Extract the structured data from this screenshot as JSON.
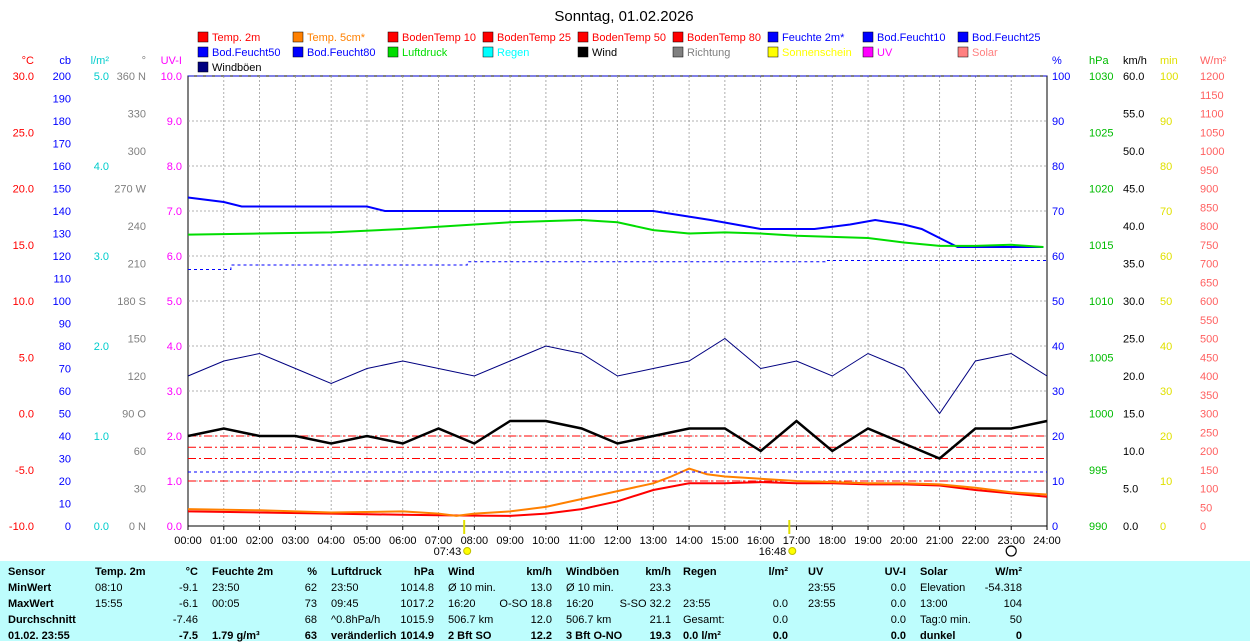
{
  "chart_data": {
    "type": "line",
    "title": "Sonntag, 01.02.2026",
    "x_ticks": [
      "00:00",
      "01:00",
      "02:00",
      "03:00",
      "04:00",
      "05:00",
      "06:00",
      "07:00",
      "08:00",
      "09:00",
      "10:00",
      "11:00",
      "12:00",
      "13:00",
      "14:00",
      "15:00",
      "16:00",
      "17:00",
      "18:00",
      "19:00",
      "20:00",
      "21:00",
      "22:00",
      "23:00",
      "24:00"
    ],
    "sunrise": "07:43",
    "sunset": "16:48",
    "legend": [
      {
        "label": "Temp. 2m",
        "color": "#ff0000"
      },
      {
        "label": "Temp. 5cm*",
        "color": "#ff8000"
      },
      {
        "label": "BodenTemp 10",
        "color": "#ff0000"
      },
      {
        "label": "BodenTemp 25",
        "color": "#ff0000"
      },
      {
        "label": "BodenTemp 50",
        "color": "#ff0000"
      },
      {
        "label": "BodenTemp 80",
        "color": "#ff0000"
      },
      {
        "label": "Feuchte 2m*",
        "color": "#0000ff"
      },
      {
        "label": "Bod.Feucht10",
        "color": "#0000ff"
      },
      {
        "label": "Bod.Feucht25",
        "color": "#0000ff"
      },
      {
        "label": "Bod.Feucht50",
        "color": "#0000ff"
      },
      {
        "label": "Bod.Feucht80",
        "color": "#0000ff"
      },
      {
        "label": "Luftdruck",
        "color": "#00dd00"
      },
      {
        "label": "Regen",
        "color": "#00ffff"
      },
      {
        "label": "Wind",
        "color": "#000000"
      },
      {
        "label": "Richtung",
        "color": "#808080"
      },
      {
        "label": "Sonnenschein",
        "color": "#ffff00"
      },
      {
        "label": "UV",
        "color": "#ff00ff"
      },
      {
        "label": "Solar",
        "color": "#ff8080"
      },
      {
        "label": "Windböen",
        "color": "#000080"
      }
    ],
    "axes_left": [
      {
        "unit": "°C",
        "color": "#ff0000",
        "ticks": [
          "30.0",
          "25.0",
          "20.0",
          "15.0",
          "10.0",
          "5.0",
          "0.0",
          "-5.0",
          "-10.0"
        ]
      },
      {
        "unit": "cb",
        "color": "#0000ff",
        "ticks": [
          "200",
          "190",
          "180",
          "170",
          "160",
          "150",
          "140",
          "130",
          "120",
          "110",
          "100",
          "90",
          "80",
          "70",
          "60",
          "50",
          "40",
          "30",
          "20",
          "10",
          "0"
        ]
      },
      {
        "unit": "l/m²",
        "color": "#00cccc",
        "ticks": [
          "5.0",
          "4.0",
          "3.0",
          "2.0",
          "1.0",
          "0.0"
        ]
      },
      {
        "unit": "°",
        "color": "#808080",
        "ticks": [
          "360 N",
          "330",
          "300",
          "270 W",
          "240",
          "210",
          "180 S",
          "150",
          "120",
          "90 O",
          "60",
          "30",
          "0 N"
        ]
      },
      {
        "unit": "UV-I",
        "color": "#ff00ff",
        "ticks": [
          "10.0",
          "9.0",
          "8.0",
          "7.0",
          "6.0",
          "5.0",
          "4.0",
          "3.0",
          "2.0",
          "1.0",
          "0.0"
        ]
      }
    ],
    "axes_right": [
      {
        "unit": "%",
        "color": "#0000ff",
        "ticks": [
          "100",
          "90",
          "80",
          "70",
          "60",
          "50",
          "40",
          "30",
          "20",
          "10",
          "0"
        ]
      },
      {
        "unit": "hPa",
        "color": "#00bb00",
        "ticks": [
          "1030",
          "1025",
          "1020",
          "1015",
          "1010",
          "1005",
          "1000",
          "995",
          "990"
        ]
      },
      {
        "unit": "km/h",
        "color": "#000000",
        "ticks": [
          "60.0",
          "55.0",
          "50.0",
          "45.0",
          "40.0",
          "35.0",
          "30.0",
          "25.0",
          "20.0",
          "15.0",
          "10.0",
          "5.0",
          "0.0"
        ]
      },
      {
        "unit": "min",
        "color": "#e0e000",
        "ticks": [
          "100",
          "90",
          "80",
          "70",
          "60",
          "50",
          "40",
          "30",
          "20",
          "10",
          "0"
        ]
      },
      {
        "unit": "W/m²",
        "color": "#ff6060",
        "ticks": [
          "1200",
          "1150",
          "1100",
          "1050",
          "1000",
          "950",
          "900",
          "850",
          "800",
          "750",
          "700",
          "650",
          "600",
          "550",
          "500",
          "450",
          "400",
          "350",
          "300",
          "250",
          "200",
          "150",
          "100",
          "50",
          "0"
        ]
      }
    ],
    "series": [
      {
        "name": "Temp. 2m",
        "axis": "°C",
        "color": "#ff0000",
        "x": [
          0,
          2,
          4,
          6,
          7,
          8,
          9,
          10,
          11,
          12,
          13,
          14,
          15,
          16,
          17,
          18,
          19,
          20,
          21,
          22,
          23,
          24
        ],
        "y": [
          -8.7,
          -8.8,
          -8.9,
          -9.0,
          -9.05,
          -9.08,
          -9.1,
          -8.9,
          -8.5,
          -7.8,
          -6.8,
          -6.2,
          -6.2,
          -6.1,
          -6.2,
          -6.2,
          -6.3,
          -6.3,
          -6.4,
          -6.8,
          -7.1,
          -7.4
        ]
      },
      {
        "name": "Temp. 5cm*",
        "axis": "°C",
        "color": "#ff8000",
        "x": [
          0,
          2,
          4,
          6,
          7,
          7.5,
          8,
          9,
          10,
          11,
          12,
          13,
          13.5,
          14,
          14.5,
          15,
          16,
          17,
          18,
          19,
          20,
          21,
          22,
          23,
          24
        ],
        "y": [
          -8.5,
          -8.6,
          -8.8,
          -8.7,
          -8.9,
          -9.1,
          -8.9,
          -8.7,
          -8.3,
          -7.6,
          -6.9,
          -6.2,
          -5.6,
          -4.9,
          -5.4,
          -5.6,
          -5.8,
          -6.0,
          -6.1,
          -6.2,
          -6.2,
          -6.3,
          -6.6,
          -7.0,
          -7.2
        ]
      },
      {
        "name": "Feuchte 2m*",
        "axis": "%",
        "color": "#0000ff",
        "x": [
          0,
          1,
          1.5,
          3,
          5,
          5.5,
          7,
          8,
          9,
          10,
          11,
          12,
          13,
          13.8,
          14.6,
          16,
          16.8,
          17.5,
          18.5,
          19.2,
          20,
          20.5,
          21,
          21.5,
          22,
          23,
          23.9
        ],
        "y": [
          73,
          72,
          71,
          71,
          71,
          70,
          70,
          70,
          70,
          70,
          70,
          70,
          70,
          69,
          68,
          66,
          66,
          66,
          67,
          68,
          67,
          66,
          64,
          62,
          62,
          62,
          62
        ]
      },
      {
        "name": "Bod.Feucht50",
        "axis": "%",
        "color": "#0000ff",
        "dashed": true,
        "x": [
          0,
          1.2,
          1.2,
          7.8,
          7.8,
          17.8,
          17.8,
          24
        ],
        "y": [
          57,
          57,
          58,
          58,
          58.7,
          58.7,
          59,
          59
        ]
      },
      {
        "name": "Bod.Feucht80",
        "axis": "%",
        "color": "#0000ff",
        "dashed": true,
        "x": [
          0,
          24
        ],
        "y": [
          12,
          12
        ]
      },
      {
        "name": "Luftdruck",
        "axis": "hPa",
        "color": "#00dd00",
        "x": [
          0,
          2,
          4,
          6,
          7,
          8,
          9,
          10,
          11,
          12,
          13,
          14,
          15,
          16,
          17,
          18,
          19,
          20,
          21,
          22,
          23,
          23.9
        ],
        "y": [
          1015.9,
          1016.0,
          1016.1,
          1016.4,
          1016.6,
          1016.8,
          1017.0,
          1017.1,
          1017.2,
          1017.0,
          1016.3,
          1016.0,
          1016.1,
          1016.0,
          1015.8,
          1015.7,
          1015.6,
          1015.2,
          1014.9,
          1014.9,
          1015.0,
          1014.8
        ]
      },
      {
        "name": "Wind",
        "axis": "km/h",
        "color": "#000000",
        "bold": true,
        "x": [
          0,
          1,
          2,
          3,
          4,
          5,
          6,
          7,
          8,
          9,
          10,
          11,
          12,
          13,
          14,
          15,
          16,
          17,
          18,
          19,
          20,
          21,
          22,
          23,
          24
        ],
        "y": [
          12,
          13,
          12,
          12,
          11,
          12,
          11,
          13,
          11,
          14,
          14,
          13,
          11,
          12,
          13,
          13,
          10,
          14,
          10,
          13,
          11,
          9,
          13,
          13,
          14
        ]
      },
      {
        "name": "Windböen",
        "axis": "km/h",
        "color": "#000080",
        "x": [
          0,
          1,
          2,
          3,
          4,
          5,
          6,
          7,
          8,
          9,
          10,
          11,
          12,
          13,
          14,
          15,
          16,
          17,
          18,
          19,
          20,
          21,
          22,
          23,
          24
        ],
        "y": [
          20,
          22,
          23,
          21,
          19,
          21,
          22,
          21,
          20,
          22,
          24,
          23,
          20,
          21,
          22,
          25,
          21,
          22,
          20,
          23,
          21,
          15,
          22,
          23,
          20
        ]
      }
    ],
    "ref_lines": [
      {
        "name": "BodenTemp 10",
        "axis": "°C",
        "color": "#ff0000",
        "value": -2.0
      },
      {
        "name": "BodenTemp 25",
        "axis": "°C",
        "color": "#ff0000",
        "value": -3.0
      },
      {
        "name": "BodenTemp 50",
        "axis": "°C",
        "color": "#ff0000",
        "value": -4.0
      },
      {
        "name": "BodenTemp 80",
        "axis": "°C",
        "color": "#ff0000",
        "value": -6.0
      }
    ],
    "grid": true
  },
  "stats": {
    "headers": [
      "Sensor",
      "Temp. 2m",
      "°C",
      "Feuchte 2m",
      "%",
      "Luftdruck",
      "hPa",
      "Wind",
      "km/h",
      "Windböen",
      "km/h",
      "Regen",
      "l/m²",
      "UV",
      "UV-I",
      "Solar",
      "W/m²"
    ],
    "rows": [
      [
        "MinWert",
        "08:10",
        "-9.1",
        "23:50",
        "62",
        "23:50",
        "1014.8",
        "Ø 10 min.",
        "13.0",
        "Ø 10 min.",
        "23.3",
        "",
        "",
        "23:55",
        "0.0",
        "Elevation",
        "-54.318"
      ],
      [
        "MaxWert",
        "15:55",
        "-6.1",
        "00:05",
        "73",
        "09:45",
        "1017.2",
        "16:20",
        "O-SO 18.8",
        "16:20",
        "S-SO 32.2",
        "23:55",
        "0.0",
        "23:55",
        "0.0",
        "13:00",
        "104"
      ],
      [
        "Durchschnitt",
        "",
        "-7.46",
        "",
        "68",
        "^0.8hPa/h",
        "1015.9",
        "506.7 km",
        "12.0",
        "506.7 km",
        "21.1",
        "Gesamt:",
        "0.0",
        "",
        "0.0",
        "Tag:0 min.",
        "50"
      ],
      [
        "01.02. 23:55",
        "",
        "-7.5",
        "1.79 g/m³",
        "63",
        "veränderlich",
        "1014.9",
        "2 Bft SO",
        "12.2",
        "3 Bft O-NO",
        "19.3",
        "0.0 l/m²",
        "0.0",
        "",
        "0.0",
        "dunkel",
        "0"
      ]
    ]
  }
}
